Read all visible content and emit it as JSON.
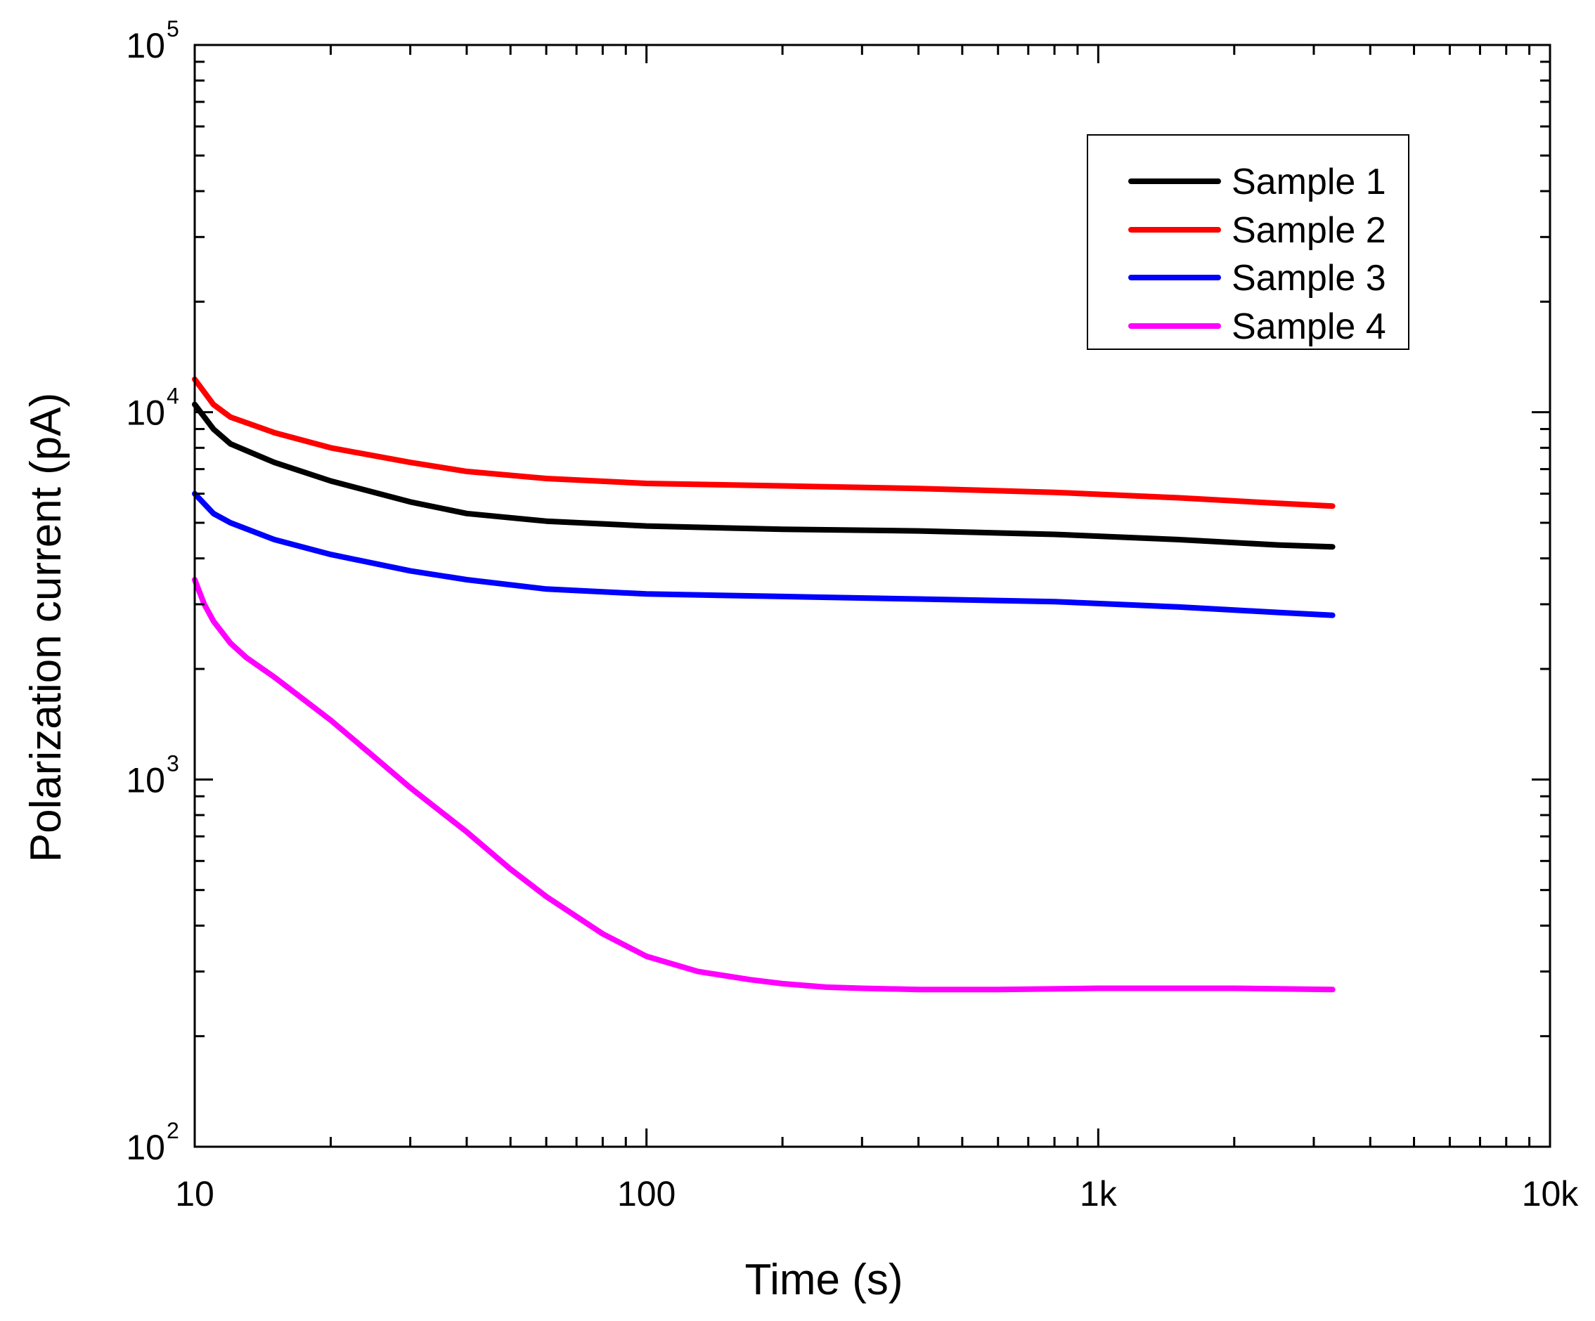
{
  "chart_data": {
    "type": "line",
    "xscale": "log",
    "yscale": "log",
    "xlim": [
      10,
      10000
    ],
    "ylim": [
      100,
      100000
    ],
    "xlabel": "Time (s)",
    "ylabel": "Polarization current (pA)",
    "xticks": [
      {
        "value": 10,
        "label": "10"
      },
      {
        "value": 100,
        "label": "100"
      },
      {
        "value": 1000,
        "label": "1k"
      },
      {
        "value": 10000,
        "label": "10k"
      }
    ],
    "yticks": [
      {
        "value": 100,
        "base": "10",
        "exp": "2"
      },
      {
        "value": 1000,
        "base": "10",
        "exp": "3"
      },
      {
        "value": 10000,
        "base": "10",
        "exp": "4"
      },
      {
        "value": 100000,
        "base": "10",
        "exp": "5"
      }
    ],
    "legend_position": "top-right",
    "series": [
      {
        "name": "Sample 1",
        "color": "#000000",
        "x": [
          10,
          11,
          12,
          15,
          20,
          30,
          40,
          60,
          100,
          200,
          400,
          800,
          1500,
          2500,
          3300
        ],
        "y": [
          10500,
          9000,
          8200,
          7300,
          6500,
          5700,
          5300,
          5050,
          4900,
          4800,
          4750,
          4650,
          4500,
          4350,
          4300
        ]
      },
      {
        "name": "Sample 2",
        "color": "#ff0000",
        "x": [
          10,
          11,
          12,
          15,
          20,
          30,
          40,
          60,
          100,
          200,
          400,
          800,
          1500,
          2500,
          3300
        ],
        "y": [
          12300,
          10500,
          9700,
          8800,
          8000,
          7300,
          6900,
          6600,
          6400,
          6300,
          6200,
          6050,
          5850,
          5650,
          5550
        ]
      },
      {
        "name": "Sample 3",
        "color": "#0000ff",
        "x": [
          10,
          11,
          12,
          15,
          20,
          30,
          40,
          60,
          100,
          200,
          400,
          800,
          1500,
          2500,
          3300
        ],
        "y": [
          6000,
          5300,
          5000,
          4500,
          4100,
          3700,
          3500,
          3300,
          3200,
          3150,
          3100,
          3050,
          2950,
          2850,
          2800
        ]
      },
      {
        "name": "Sample 4",
        "color": "#ff00ff",
        "x": [
          10,
          10.5,
          11,
          12,
          13,
          15,
          20,
          25,
          30,
          40,
          50,
          60,
          80,
          100,
          130,
          170,
          200,
          250,
          300,
          400,
          600,
          1000,
          2000,
          3300
        ],
        "y": [
          3500,
          3000,
          2700,
          2350,
          2150,
          1900,
          1450,
          1150,
          950,
          720,
          570,
          480,
          380,
          330,
          300,
          285,
          278,
          272,
          270,
          268,
          268,
          270,
          270,
          268
        ]
      }
    ]
  }
}
